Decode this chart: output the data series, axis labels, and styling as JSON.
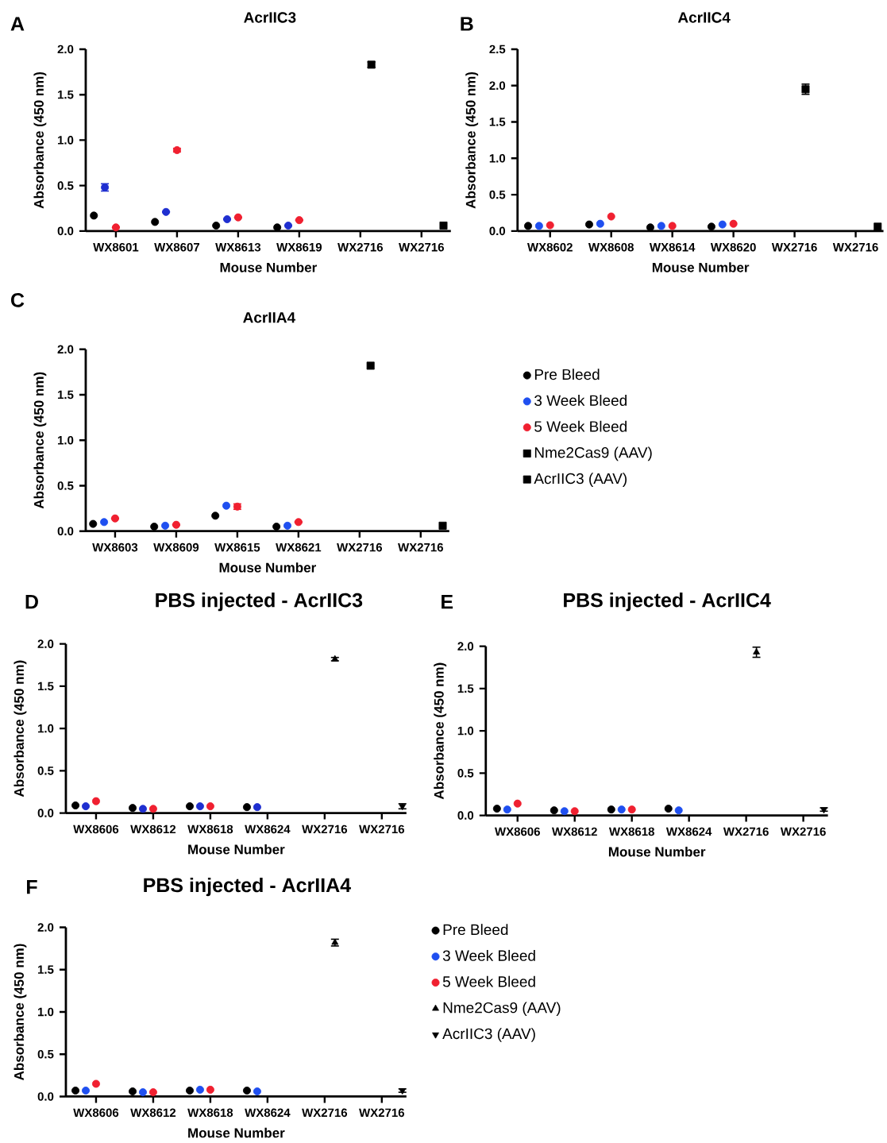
{
  "chart_data": [
    {
      "type": "scatter",
      "title": "AcrIIC3",
      "xlabel": "Mouse Number",
      "ylabel": "Absorbance (450 nm)",
      "annotations": [
        "A"
      ],
      "categories": [
        "WX8601",
        "WX8607",
        "WX8613",
        "WX8619",
        "WX2716",
        "WX2716"
      ],
      "ylim": [
        0,
        2
      ],
      "yticks": [
        {
          "value": 0,
          "label": "0.0"
        },
        {
          "value": 0.5,
          "label": "0.5"
        },
        {
          "value": 1,
          "label": "1.0"
        },
        {
          "value": 1.5,
          "label": "1.5"
        },
        {
          "value": 2,
          "label": "2.0"
        }
      ],
      "series": [
        {
          "color": "#000000",
          "marker": "circle",
          "values": [
            0.17,
            0.1,
            0.06,
            0.04,
            null,
            null
          ]
        },
        {
          "color": "#1f2fd0",
          "marker": "circle",
          "values": [
            0.48,
            0.21,
            0.13,
            0.06,
            null,
            null
          ],
          "errors": [
            0.04,
            null,
            null,
            null,
            null,
            null
          ]
        },
        {
          "color": "#f02030",
          "marker": "circle",
          "values": [
            0.04,
            0.89,
            0.15,
            0.12,
            null,
            null
          ],
          "errors": [
            null,
            0.02,
            null,
            null,
            null,
            null
          ]
        },
        {
          "color": "#000000",
          "marker": "square",
          "values": [
            null,
            null,
            null,
            null,
            1.83,
            null
          ],
          "errors": [
            null,
            null,
            null,
            null,
            0.03,
            null
          ]
        },
        {
          "color": "#000000",
          "marker": "square",
          "values": [
            null,
            null,
            null,
            null,
            null,
            0.06
          ]
        }
      ]
    },
    {
      "type": "scatter",
      "title": "AcrIIC4",
      "xlabel": "Mouse Number",
      "ylabel": "Absorbance (450 nm)",
      "annotations": [
        "B"
      ],
      "categories": [
        "WX8602",
        "WX8608",
        "WX8614",
        "WX8620",
        "WX2716",
        "WX2716"
      ],
      "ylim": [
        0,
        2.5
      ],
      "yticks": [
        {
          "value": 0,
          "label": "0.0"
        },
        {
          "value": 0.5,
          "label": "0.5"
        },
        {
          "value": 1,
          "label": "1.0"
        },
        {
          "value": 1.5,
          "label": "1.5"
        },
        {
          "value": 2,
          "label": "2.0"
        },
        {
          "value": 2.5,
          "label": "2.5"
        }
      ],
      "series": [
        {
          "color": "#000000",
          "marker": "circle",
          "values": [
            0.07,
            0.09,
            0.05,
            0.06,
            null,
            null
          ]
        },
        {
          "color": "#1f4ff0",
          "marker": "circle",
          "values": [
            0.07,
            0.1,
            0.07,
            0.09,
            null,
            null
          ]
        },
        {
          "color": "#f02030",
          "marker": "circle",
          "values": [
            0.08,
            0.2,
            0.07,
            0.1,
            null,
            null
          ]
        },
        {
          "color": "#000000",
          "marker": "square",
          "values": [
            null,
            null,
            null,
            null,
            1.95,
            null
          ],
          "errors": [
            null,
            null,
            null,
            null,
            0.07,
            null
          ]
        },
        {
          "color": "#000000",
          "marker": "square",
          "values": [
            null,
            null,
            null,
            null,
            null,
            0.06
          ]
        }
      ]
    },
    {
      "type": "scatter",
      "title": "AcrIIA4",
      "xlabel": "Mouse Number",
      "ylabel": "Absorbance (450 nm)",
      "annotations": [
        "C"
      ],
      "legend": "right",
      "categories": [
        "WX8603",
        "WX8609",
        "WX8615",
        "WX8621",
        "WX2716",
        "WX2716"
      ],
      "ylim": [
        0,
        2
      ],
      "yticks": [
        {
          "value": 0,
          "label": "0.0"
        },
        {
          "value": 0.5,
          "label": "0.5"
        },
        {
          "value": 1,
          "label": "1.0"
        },
        {
          "value": 1.5,
          "label": "1.5"
        },
        {
          "value": 2,
          "label": "2.0"
        }
      ],
      "series": [
        {
          "name": "Pre Bleed",
          "color": "#000000",
          "marker": "circle",
          "values": [
            0.08,
            0.05,
            0.17,
            0.05,
            null,
            null
          ]
        },
        {
          "name": "3 Week Bleed",
          "color": "#1f4ff0",
          "marker": "circle",
          "values": [
            0.1,
            0.06,
            0.28,
            0.06,
            null,
            null
          ]
        },
        {
          "name": "5 Week Bleed",
          "color": "#f02030",
          "marker": "circle",
          "values": [
            0.14,
            0.07,
            0.27,
            0.1,
            null,
            null
          ],
          "errors": [
            null,
            null,
            0.03,
            null,
            null,
            null
          ]
        },
        {
          "name": "Nme2Cas9 (AAV)",
          "color": "#000000",
          "marker": "square",
          "values": [
            null,
            null,
            null,
            null,
            1.82,
            null
          ]
        },
        {
          "name": "AcrIIC3 (AAV)",
          "color": "#000000",
          "marker": "square",
          "values": [
            null,
            null,
            null,
            null,
            null,
            0.06
          ]
        }
      ]
    },
    {
      "type": "scatter",
      "title": "PBS injected - AcrIIC3",
      "xlabel": "Mouse Number",
      "ylabel": "Absorbance (450 nm)",
      "annotations": [
        "D"
      ],
      "categories": [
        "WX8606",
        "WX8612",
        "WX8618",
        "WX8624",
        "WX2716",
        "WX2716"
      ],
      "ylim": [
        0,
        2
      ],
      "yticks": [
        {
          "value": 0,
          "label": "0.0"
        },
        {
          "value": 0.5,
          "label": "0.5"
        },
        {
          "value": 1,
          "label": "1.0"
        },
        {
          "value": 1.5,
          "label": "1.5"
        },
        {
          "value": 2,
          "label": "2.0"
        }
      ],
      "series": [
        {
          "color": "#000000",
          "marker": "circle",
          "values": [
            0.09,
            0.06,
            0.08,
            0.07,
            null,
            null
          ]
        },
        {
          "color": "#1f2fd0",
          "marker": "circle",
          "values": [
            0.08,
            0.05,
            0.08,
            0.07,
            null,
            null
          ]
        },
        {
          "color": "#f02030",
          "marker": "circle",
          "values": [
            0.14,
            0.05,
            0.08,
            null,
            null,
            null
          ]
        },
        {
          "color": "#000000",
          "marker": "triangle",
          "values": [
            null,
            null,
            null,
            null,
            1.82,
            null
          ],
          "errors": [
            null,
            null,
            null,
            null,
            0.02,
            null
          ]
        },
        {
          "color": "#000000",
          "marker": "triangle down",
          "values": [
            null,
            null,
            null,
            null,
            null,
            0.08
          ],
          "errors": [
            null,
            null,
            null,
            null,
            null,
            0.03
          ]
        }
      ]
    },
    {
      "type": "scatter",
      "title": "PBS injected -  AcrIIC4",
      "xlabel": "Mouse Number",
      "ylabel": "Absorbance (450 nm)",
      "annotations": [
        "E"
      ],
      "categories": [
        "WX8606",
        "WX8612",
        "WX8618",
        "WX8624",
        "WX2716",
        "WX2716"
      ],
      "ylim": [
        0,
        2
      ],
      "yticks": [
        {
          "value": 0,
          "label": "0.0"
        },
        {
          "value": 0.5,
          "label": "0.5"
        },
        {
          "value": 1,
          "label": "1.0"
        },
        {
          "value": 1.5,
          "label": "1.5"
        },
        {
          "value": 2,
          "label": "2.0"
        }
      ],
      "series": [
        {
          "color": "#000000",
          "marker": "circle",
          "values": [
            0.08,
            0.06,
            0.07,
            0.08,
            null,
            null
          ]
        },
        {
          "color": "#1f4ff0",
          "marker": "circle",
          "values": [
            0.07,
            0.05,
            0.07,
            0.06,
            null,
            null
          ]
        },
        {
          "color": "#f02030",
          "marker": "circle",
          "values": [
            0.14,
            0.05,
            0.07,
            null,
            null,
            null
          ]
        },
        {
          "color": "#000000",
          "marker": "triangle",
          "values": [
            null,
            null,
            null,
            null,
            1.93,
            null
          ],
          "errors": [
            null,
            null,
            null,
            null,
            0.06,
            null
          ]
        },
        {
          "color": "#000000",
          "marker": "triangle down",
          "values": [
            null,
            null,
            null,
            null,
            null,
            0.07
          ],
          "errors": [
            null,
            null,
            null,
            null,
            null,
            0.02
          ]
        }
      ]
    },
    {
      "type": "scatter",
      "title": "PBS injected - AcrIIA4",
      "xlabel": "Mouse Number",
      "ylabel": "Absorbance (450 nm)",
      "annotations": [
        "F"
      ],
      "legend": "right",
      "categories": [
        "WX8606",
        "WX8612",
        "WX8618",
        "WX8624",
        "WX2716",
        "WX2716"
      ],
      "ylim": [
        0,
        2
      ],
      "yticks": [
        {
          "value": 0,
          "label": "0.0"
        },
        {
          "value": 0.5,
          "label": "0.5"
        },
        {
          "value": 1,
          "label": "1.0"
        },
        {
          "value": 1.5,
          "label": "1.5"
        },
        {
          "value": 2,
          "label": "2.0"
        }
      ],
      "series": [
        {
          "name": "Pre Bleed",
          "color": "#000000",
          "marker": "circle",
          "values": [
            0.07,
            0.06,
            0.07,
            0.07,
            null,
            null
          ]
        },
        {
          "name": "3 Week Bleed",
          "color": "#1f4ff0",
          "marker": "circle",
          "values": [
            0.07,
            0.05,
            0.08,
            0.06,
            null,
            null
          ]
        },
        {
          "name": "5 Week Bleed",
          "color": "#f02030",
          "marker": "circle",
          "values": [
            0.15,
            0.05,
            0.08,
            null,
            null,
            null
          ]
        },
        {
          "name": "Nme2Cas9 (AAV)",
          "color": "#000000",
          "marker": "triangle",
          "values": [
            null,
            null,
            null,
            null,
            1.82,
            null
          ],
          "errors": [
            null,
            null,
            null,
            null,
            0.04,
            null
          ]
        },
        {
          "name": "AcrIIC3 (AAV)",
          "color": "#000000",
          "marker": "triangle down",
          "values": [
            null,
            null,
            null,
            null,
            null,
            0.07
          ],
          "errors": [
            null,
            null,
            null,
            null,
            null,
            0.02
          ]
        }
      ]
    }
  ]
}
